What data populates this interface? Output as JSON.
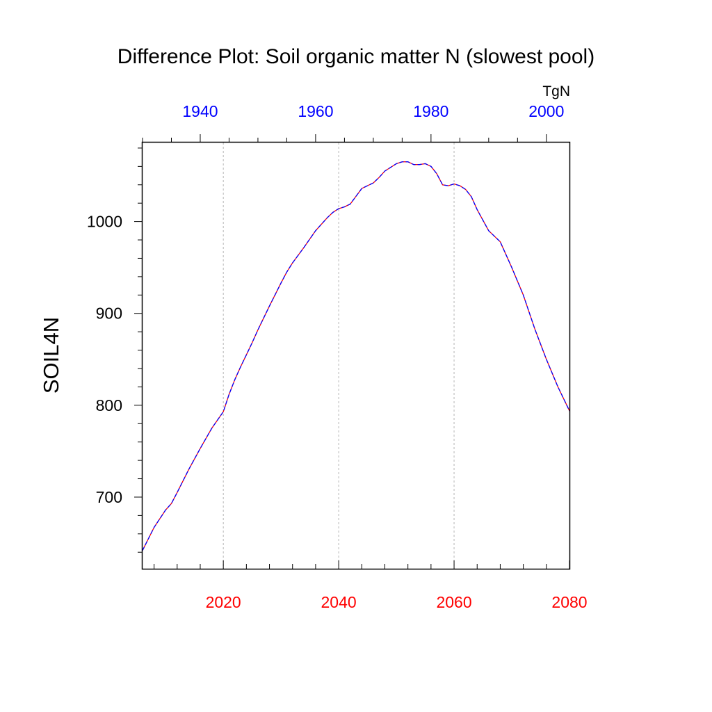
{
  "chart_data": {
    "type": "line",
    "title": "Difference Plot: Soil organic matter N (slowest pool)",
    "ylabel": "SOIL4N",
    "units_label": "TgN",
    "grid": "vertical-dashed-at-major-bottom-ticks",
    "colors": {
      "bottom_axis": "#ff0000",
      "top_axis": "#0000ff",
      "series_a": "#ff0000",
      "series_b": "#0000ff",
      "grid": "#b4b4b4",
      "frame": "#000000"
    },
    "bottom_axis": {
      "range": [
        2006,
        2080
      ],
      "major_ticks": [
        2020,
        2040,
        2060,
        2080
      ],
      "minor_step": 4
    },
    "top_axis": {
      "range": [
        1930,
        2004
      ],
      "major_ticks": [
        1940,
        1960,
        1980,
        2000
      ],
      "minor_step": 5
    },
    "y_axis": {
      "range": [
        622,
        1086
      ],
      "major_ticks": [
        700,
        800,
        900,
        1000
      ],
      "minor_step": 20
    },
    "series": [
      {
        "name": "",
        "style": "line",
        "color": "#ff0000",
        "x": [
          2006,
          2008,
          2010,
          2011,
          2012,
          2014,
          2016,
          2018,
          2020,
          2021,
          2022,
          2023,
          2024,
          2025,
          2026,
          2027,
          2028,
          2030,
          2031,
          2032,
          2034,
          2036,
          2038,
          2039,
          2040,
          2041,
          2042,
          2044,
          2046,
          2047,
          2048,
          2050,
          2051,
          2052,
          2053,
          2054,
          2055,
          2056,
          2057,
          2058,
          2059,
          2060,
          2061,
          2062,
          2063,
          2064,
          2066,
          2068,
          2070,
          2072,
          2074,
          2076,
          2078,
          2080
        ],
        "y": [
          642,
          667,
          686,
          693,
          705,
          730,
          753,
          775,
          793,
          812,
          828,
          842,
          855,
          868,
          882,
          895,
          908,
          933,
          945,
          955,
          972,
          990,
          1004,
          1010,
          1014,
          1016,
          1019,
          1036,
          1042,
          1048,
          1055,
          1063,
          1065,
          1065,
          1062,
          1062,
          1063,
          1060,
          1052,
          1040,
          1039,
          1041,
          1039,
          1035,
          1027,
          1013,
          990,
          978,
          950,
          920,
          883,
          850,
          820,
          794
        ]
      },
      {
        "name": "",
        "style": "dashed",
        "color": "#0000ff",
        "x": [
          2006,
          2008,
          2010,
          2011,
          2012,
          2014,
          2016,
          2018,
          2020,
          2021,
          2022,
          2023,
          2024,
          2025,
          2026,
          2027,
          2028,
          2030,
          2031,
          2032,
          2034,
          2036,
          2038,
          2039,
          2040,
          2041,
          2042,
          2044,
          2046,
          2047,
          2048,
          2050,
          2051,
          2052,
          2053,
          2054,
          2055,
          2056,
          2057,
          2058,
          2059,
          2060,
          2061,
          2062,
          2063,
          2064,
          2066,
          2068,
          2070,
          2072,
          2074,
          2076,
          2078,
          2080
        ],
        "y": [
          642,
          667,
          686,
          693,
          705,
          730,
          753,
          775,
          793,
          812,
          828,
          842,
          855,
          868,
          882,
          895,
          908,
          933,
          945,
          955,
          972,
          990,
          1004,
          1010,
          1014,
          1016,
          1019,
          1036,
          1042,
          1048,
          1055,
          1063,
          1065,
          1065,
          1062,
          1062,
          1063,
          1060,
          1052,
          1040,
          1039,
          1041,
          1039,
          1035,
          1027,
          1013,
          990,
          978,
          950,
          920,
          883,
          850,
          820,
          794
        ]
      }
    ]
  }
}
